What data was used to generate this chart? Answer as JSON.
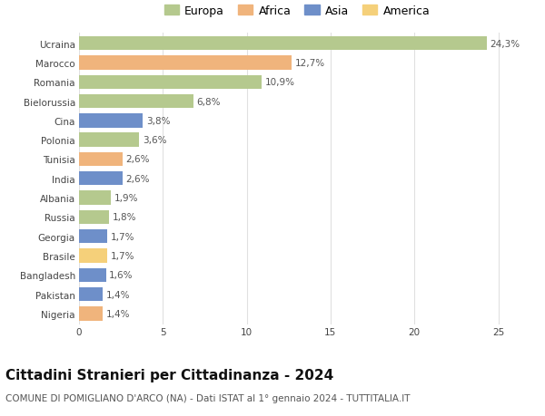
{
  "countries": [
    "Ucraina",
    "Marocco",
    "Romania",
    "Bielorussia",
    "Cina",
    "Polonia",
    "Tunisia",
    "India",
    "Albania",
    "Russia",
    "Georgia",
    "Brasile",
    "Bangladesh",
    "Pakistan",
    "Nigeria"
  ],
  "values": [
    24.3,
    12.7,
    10.9,
    6.8,
    3.8,
    3.6,
    2.6,
    2.6,
    1.9,
    1.8,
    1.7,
    1.7,
    1.6,
    1.4,
    1.4
  ],
  "labels": [
    "24,3%",
    "12,7%",
    "10,9%",
    "6,8%",
    "3,8%",
    "3,6%",
    "2,6%",
    "2,6%",
    "1,9%",
    "1,8%",
    "1,7%",
    "1,7%",
    "1,6%",
    "1,4%",
    "1,4%"
  ],
  "continents": [
    "Europa",
    "Africa",
    "Europa",
    "Europa",
    "Asia",
    "Europa",
    "Africa",
    "Asia",
    "Europa",
    "Europa",
    "Asia",
    "America",
    "Asia",
    "Asia",
    "Africa"
  ],
  "colors": {
    "Europa": "#b5c98e",
    "Africa": "#f0b47c",
    "Asia": "#6e8fc9",
    "America": "#f5d07a"
  },
  "legend_order": [
    "Europa",
    "Africa",
    "Asia",
    "America"
  ],
  "title": "Cittadini Stranieri per Cittadinanza - 2024",
  "subtitle": "COMUNE DI POMIGLIANO D'ARCO (NA) - Dati ISTAT al 1° gennaio 2024 - TUTTITALIA.IT",
  "xlim": [
    0,
    26
  ],
  "xticks": [
    0,
    5,
    10,
    15,
    20,
    25
  ],
  "background_color": "#ffffff",
  "grid_color": "#e0e0e0",
  "bar_height": 0.72,
  "label_fontsize": 7.5,
  "tick_fontsize": 7.5,
  "legend_fontsize": 9,
  "title_fontsize": 11,
  "subtitle_fontsize": 7.5
}
